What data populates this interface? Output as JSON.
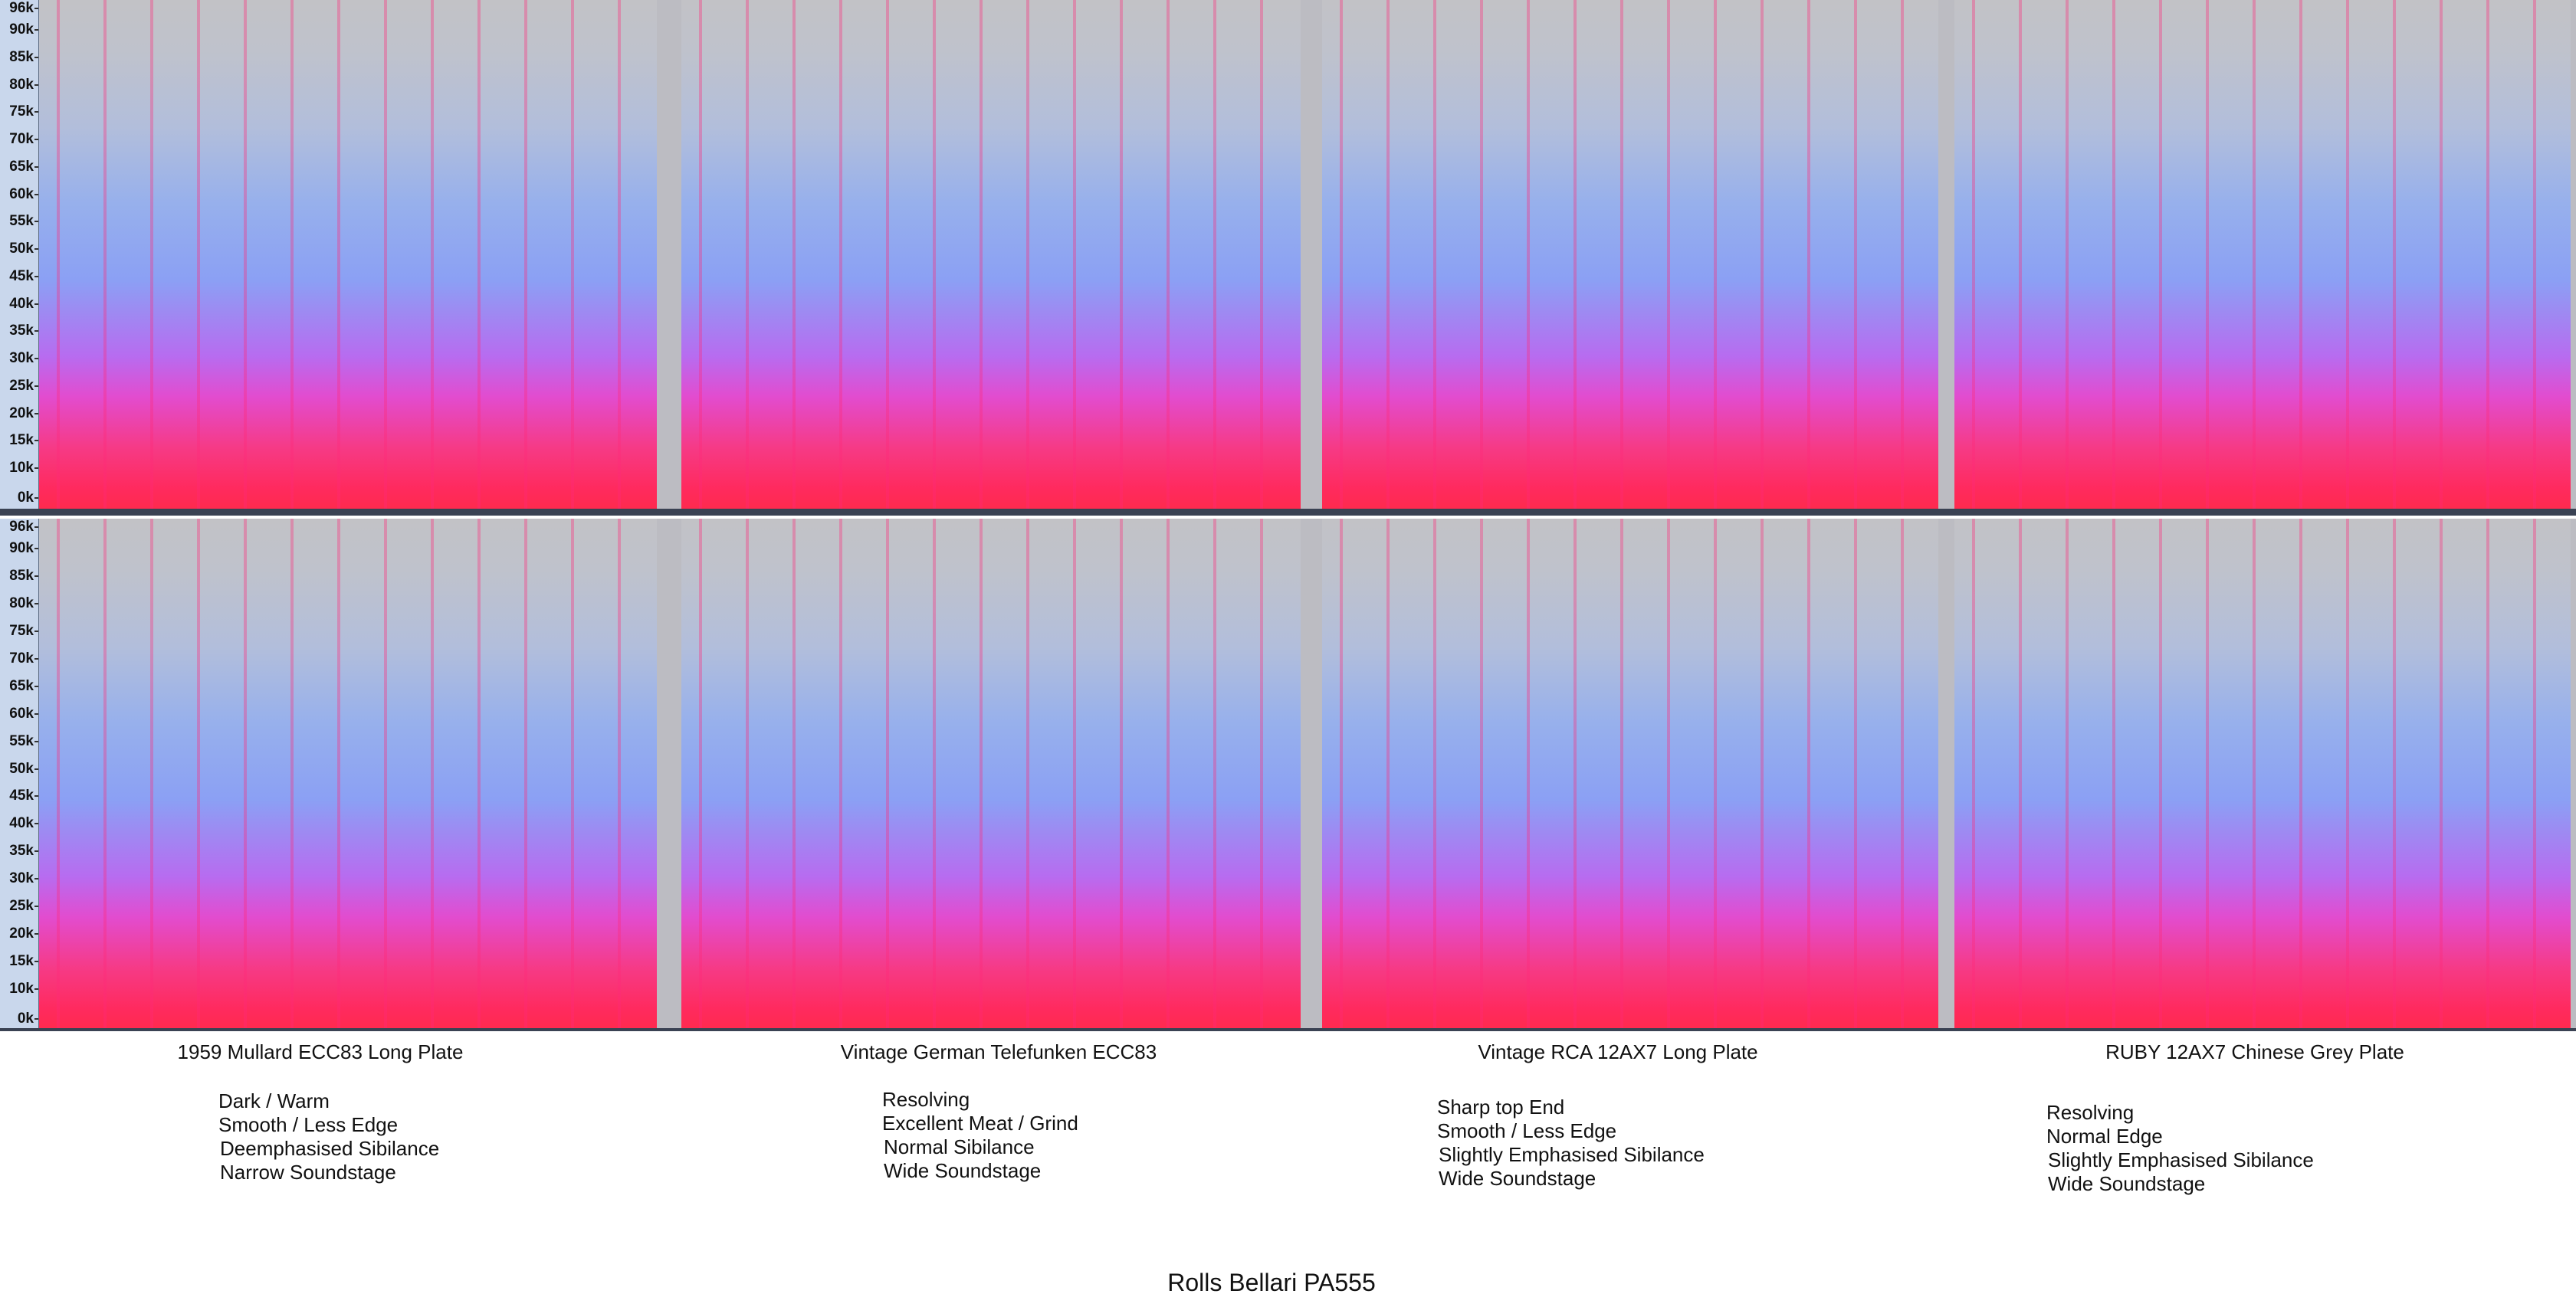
{
  "axis": {
    "ticks": [
      "96k",
      "90k",
      "85k",
      "80k",
      "75k",
      "70k",
      "65k",
      "60k",
      "55k",
      "50k",
      "45k",
      "40k",
      "35k",
      "30k",
      "25k",
      "20k",
      "15k",
      "10k",
      "0k"
    ]
  },
  "panels": [
    {
      "caption": "1959 Mullard ECC83 Long Plate",
      "notes": [
        "Dark / Warm",
        "Smooth / Less Edge",
        "Deemphasised Sibilance",
        "Narrow Soundstage"
      ]
    },
    {
      "caption": "Vintage German Telefunken ECC83",
      "notes": [
        "Resolving",
        "Excellent Meat / Grind",
        "Normal Sibilance",
        "Wide Soundstage"
      ]
    },
    {
      "caption": "Vintage RCA 12AX7 Long Plate",
      "notes": [
        "Sharp top End",
        "Smooth / Less Edge",
        "Slightly Emphasised Sibilance",
        "Wide Soundstage"
      ]
    },
    {
      "caption": "RUBY 12AX7 Chinese Grey Plate",
      "notes": [
        "Resolving",
        "Normal Edge",
        "Slightly Emphasised Sibilance",
        "Wide Soundstage"
      ]
    }
  ],
  "footer": "Rolls Bellari PA555"
}
